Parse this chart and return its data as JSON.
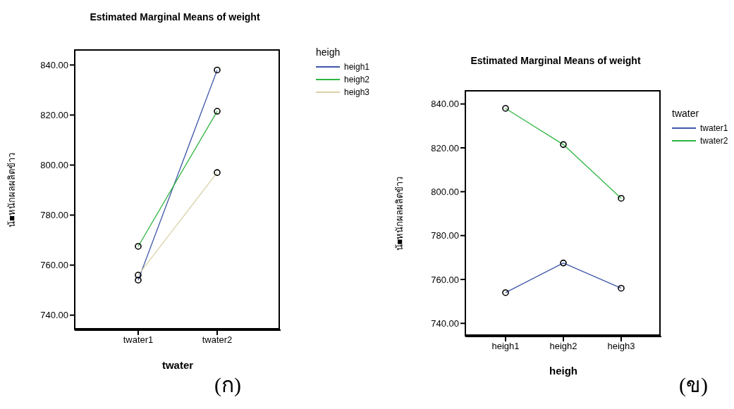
{
  "chart_data": [
    {
      "type": "line",
      "title": "Estimated Marginal Means of weight",
      "xlabel": "twater",
      "ylabel": "น้■หนักผลผลิตข้าว",
      "legend_title": "heigh",
      "legend": "right",
      "marker": "circle",
      "categories": [
        "twater1",
        "twater2"
      ],
      "series": [
        {
          "name": "heigh1",
          "color": "#3f57a8",
          "values": [
            754,
            838
          ]
        },
        {
          "name": "heigh2",
          "color": "#2db540",
          "values": [
            767.5,
            821.5
          ]
        },
        {
          "name": "heigh3",
          "color": "#d8d1a6",
          "values": [
            756,
            797
          ]
        }
      ],
      "ylim": [
        734,
        846
      ],
      "yticks": [
        {
          "value": 740,
          "label": "740.00"
        },
        {
          "value": 760,
          "label": "760.00"
        },
        {
          "value": 780,
          "label": "780.00"
        },
        {
          "value": 800,
          "label": "800.00"
        },
        {
          "value": 820,
          "label": "820.00"
        },
        {
          "value": 840,
          "label": "840.00"
        }
      ],
      "annotations": [
        "(ก)"
      ]
    },
    {
      "type": "line",
      "title": "Estimated Marginal Means of weight",
      "xlabel": "heigh",
      "ylabel": "น้■หนักผลผลิตข้าว",
      "legend_title": "twater",
      "legend": "right",
      "marker": "circle",
      "categories": [
        "heigh1",
        "heigh2",
        "heigh3"
      ],
      "series": [
        {
          "name": "twater1",
          "color": "#3f57a8",
          "values": [
            754,
            767.5,
            756
          ]
        },
        {
          "name": "twater2",
          "color": "#2db540",
          "values": [
            838,
            821.5,
            797
          ]
        }
      ],
      "ylim": [
        734,
        846
      ],
      "yticks": [
        {
          "value": 740,
          "label": "740.00"
        },
        {
          "value": 760,
          "label": "760.00"
        },
        {
          "value": 780,
          "label": "780.00"
        },
        {
          "value": 800,
          "label": "800.00"
        },
        {
          "value": 820,
          "label": "820.00"
        },
        {
          "value": 840,
          "label": "840.00"
        }
      ],
      "annotations": [
        "(ข)"
      ]
    }
  ]
}
